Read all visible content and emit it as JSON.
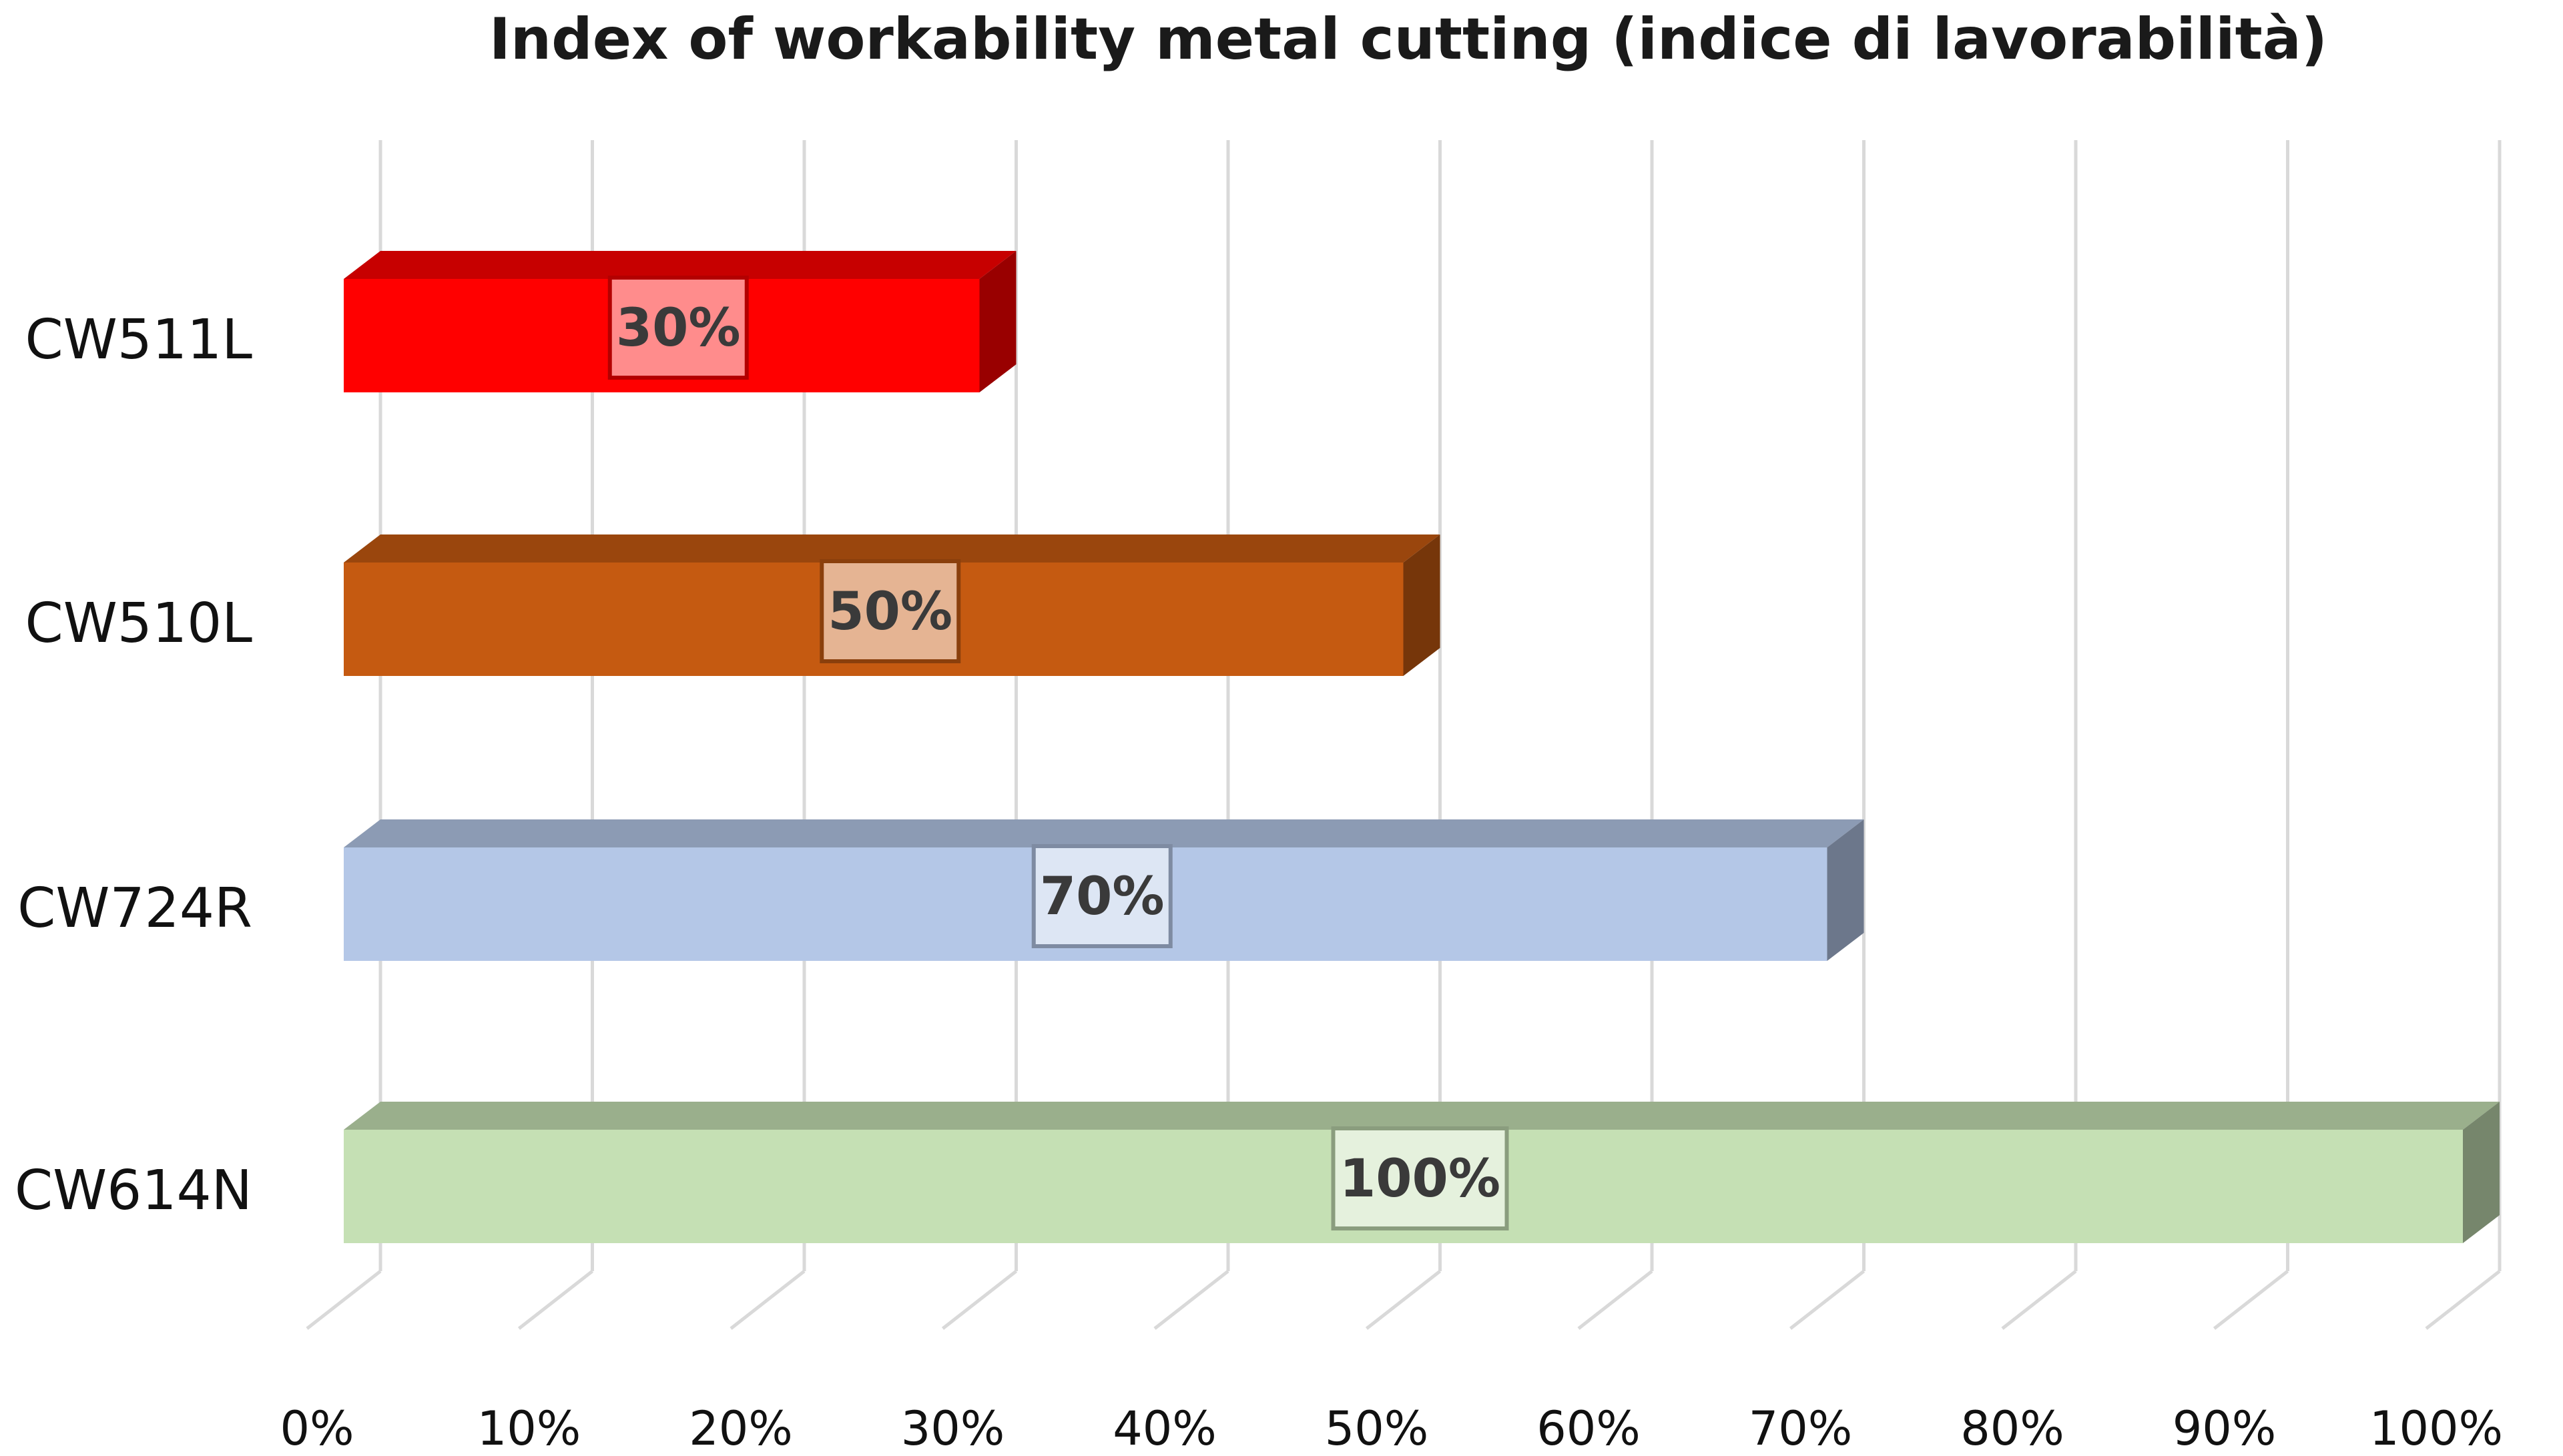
{
  "chart_data": {
    "type": "bar",
    "orientation": "horizontal",
    "style": "3d",
    "title": "Index of workability metal cutting (indice di lavorabilità)",
    "xlabel": "",
    "ylabel": "",
    "categories": [
      "CW511L",
      "CW510L",
      "CW724R",
      "CW614N"
    ],
    "values": [
      30,
      50,
      70,
      100
    ],
    "data_labels": [
      "30%",
      "50%",
      "70%",
      "100%"
    ],
    "xlim": [
      0,
      100
    ],
    "x_ticks": [
      0,
      10,
      20,
      30,
      40,
      50,
      60,
      70,
      80,
      90,
      100
    ],
    "x_tick_labels": [
      "0%",
      "10%",
      "20%",
      "30%",
      "40%",
      "50%",
      "60%",
      "70%",
      "80%",
      "90%",
      "100%"
    ],
    "grid": "vertical",
    "legend": "none",
    "colors": {
      "CW511L": "#ff0000",
      "CW510L": "#c55a11",
      "CW724R": "#b4c7e7",
      "CW614N": "#c5e0b4"
    }
  }
}
